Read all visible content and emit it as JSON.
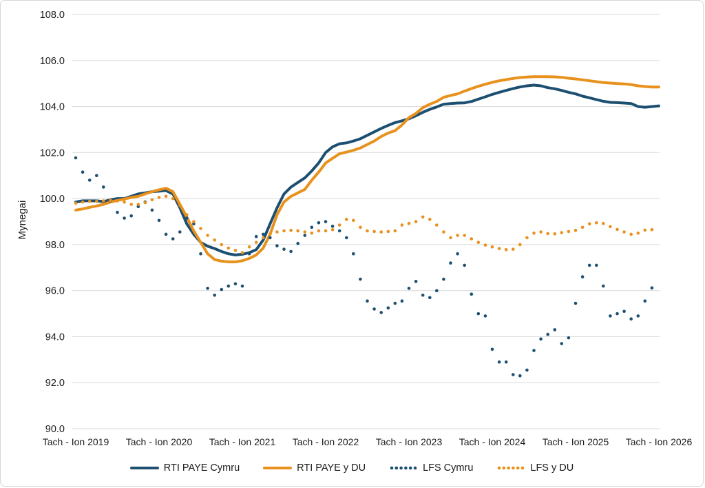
{
  "chart_data": {
    "type": "line",
    "title": "",
    "ylabel": "Mynegai",
    "xlabel": "",
    "ylim": [
      90.0,
      108.0
    ],
    "ytick_step": 2.0,
    "ytick_labels": [
      "90.0",
      "92.0",
      "94.0",
      "96.0",
      "98.0",
      "100.0",
      "102.0",
      "104.0",
      "106.0",
      "108.0"
    ],
    "grid": "horizontal",
    "legend_position": "bottom",
    "grid_color": "#d9d9d9",
    "text_color": "#1a1a1a",
    "x_labels": [
      "Tach - Ion 2019",
      "Tach - Ion 2020",
      "Tach - Ion 2021",
      "Tach - Ion 2022",
      "Tach - Ion 2023",
      "Tach - Ion 2024",
      "Tach - Ion 2025",
      "Tach - Ion 2026"
    ],
    "months_per_label": 12,
    "series": [
      {
        "name": "RTI PAYE Cymru",
        "color": "#1d4f71",
        "style": "solid",
        "values": [
          99.85,
          99.9,
          99.9,
          99.9,
          99.87,
          99.95,
          100.0,
          100.0,
          100.1,
          100.2,
          100.25,
          100.3,
          100.32,
          100.35,
          100.2,
          99.6,
          98.9,
          98.45,
          98.1,
          97.93,
          97.83,
          97.7,
          97.6,
          97.55,
          97.58,
          97.65,
          97.78,
          98.2,
          98.9,
          99.6,
          100.2,
          100.5,
          100.7,
          100.9,
          101.2,
          101.55,
          102.0,
          102.25,
          102.38,
          102.42,
          102.5,
          102.6,
          102.75,
          102.9,
          103.05,
          103.18,
          103.3,
          103.38,
          103.47,
          103.6,
          103.75,
          103.88,
          103.98,
          104.1,
          104.13,
          104.15,
          104.16,
          104.22,
          104.32,
          104.42,
          104.53,
          104.62,
          104.7,
          104.78,
          104.85,
          104.9,
          104.93,
          104.9,
          104.82,
          104.77,
          104.7,
          104.62,
          104.55,
          104.45,
          104.38,
          104.3,
          104.23,
          104.18,
          104.17,
          104.15,
          104.13,
          104.0,
          103.97,
          104.0,
          104.03
        ]
      },
      {
        "name": "RTI PAYE y DU",
        "color": "#e8911d",
        "style": "solid",
        "values": [
          99.5,
          99.55,
          99.62,
          99.68,
          99.75,
          99.85,
          99.92,
          99.98,
          100.05,
          100.1,
          100.2,
          100.3,
          100.38,
          100.45,
          100.3,
          99.75,
          99.2,
          98.6,
          98.1,
          97.6,
          97.35,
          97.28,
          97.25,
          97.25,
          97.3,
          97.4,
          97.55,
          97.85,
          98.45,
          99.3,
          99.85,
          100.1,
          100.25,
          100.4,
          100.8,
          101.15,
          101.55,
          101.75,
          101.95,
          102.02,
          102.1,
          102.2,
          102.35,
          102.5,
          102.7,
          102.85,
          102.95,
          103.2,
          103.52,
          103.7,
          103.95,
          104.1,
          104.22,
          104.4,
          104.48,
          104.55,
          104.67,
          104.78,
          104.88,
          104.97,
          105.05,
          105.12,
          105.17,
          105.22,
          105.26,
          105.28,
          105.3,
          105.3,
          105.3,
          105.29,
          105.27,
          105.23,
          105.2,
          105.16,
          105.12,
          105.08,
          105.04,
          105.02,
          105.0,
          104.98,
          104.95,
          104.9,
          104.87,
          104.85,
          104.85
        ]
      },
      {
        "name": "LFS Cymru",
        "color": "#1d4f71",
        "style": "dotted",
        "values": [
          101.77,
          101.15,
          100.8,
          101.0,
          100.5,
          99.9,
          99.4,
          99.15,
          99.25,
          99.65,
          99.85,
          99.5,
          99.05,
          98.45,
          98.25,
          98.55,
          99.15,
          98.9,
          97.6,
          96.1,
          95.8,
          96.05,
          96.2,
          96.3,
          96.2,
          97.6,
          98.35,
          98.45,
          98.3,
          97.95,
          97.8,
          97.7,
          98.05,
          98.4,
          98.75,
          98.95,
          99.0,
          98.8,
          98.6,
          98.3,
          97.6,
          96.5,
          95.55,
          95.2,
          95.05,
          95.25,
          95.45,
          95.55,
          96.1,
          96.4,
          95.8,
          95.7,
          96.0,
          96.5,
          97.2,
          97.6,
          97.1,
          95.85,
          95.0,
          94.9,
          93.45,
          92.9,
          92.9,
          92.35,
          92.3,
          92.55,
          93.4,
          93.9,
          94.1,
          94.3,
          93.7,
          93.95,
          95.45,
          96.6,
          97.1,
          97.1,
          96.2,
          94.9,
          95.0,
          95.1,
          94.77,
          94.9,
          95.55,
          96.12
        ]
      },
      {
        "name": "LFS y DU",
        "color": "#e8911d",
        "style": "dotted",
        "values": [
          99.8,
          99.85,
          99.88,
          99.88,
          99.9,
          99.92,
          99.9,
          99.85,
          99.75,
          99.75,
          99.82,
          99.95,
          100.05,
          100.1,
          100.0,
          99.7,
          99.3,
          99.0,
          98.7,
          98.4,
          98.2,
          98.0,
          97.85,
          97.75,
          97.65,
          97.9,
          98.1,
          98.3,
          98.45,
          98.55,
          98.6,
          98.62,
          98.6,
          98.55,
          98.5,
          98.6,
          98.6,
          98.65,
          98.85,
          99.1,
          99.05,
          98.75,
          98.6,
          98.57,
          98.55,
          98.57,
          98.6,
          98.85,
          98.92,
          99.0,
          99.2,
          99.1,
          98.85,
          98.55,
          98.3,
          98.4,
          98.4,
          98.25,
          98.1,
          97.98,
          97.9,
          97.83,
          97.78,
          97.8,
          98.0,
          98.3,
          98.5,
          98.55,
          98.48,
          98.47,
          98.52,
          98.57,
          98.62,
          98.75,
          98.9,
          98.95,
          98.92,
          98.78,
          98.66,
          98.55,
          98.45,
          98.5,
          98.63,
          98.65
        ]
      }
    ]
  }
}
